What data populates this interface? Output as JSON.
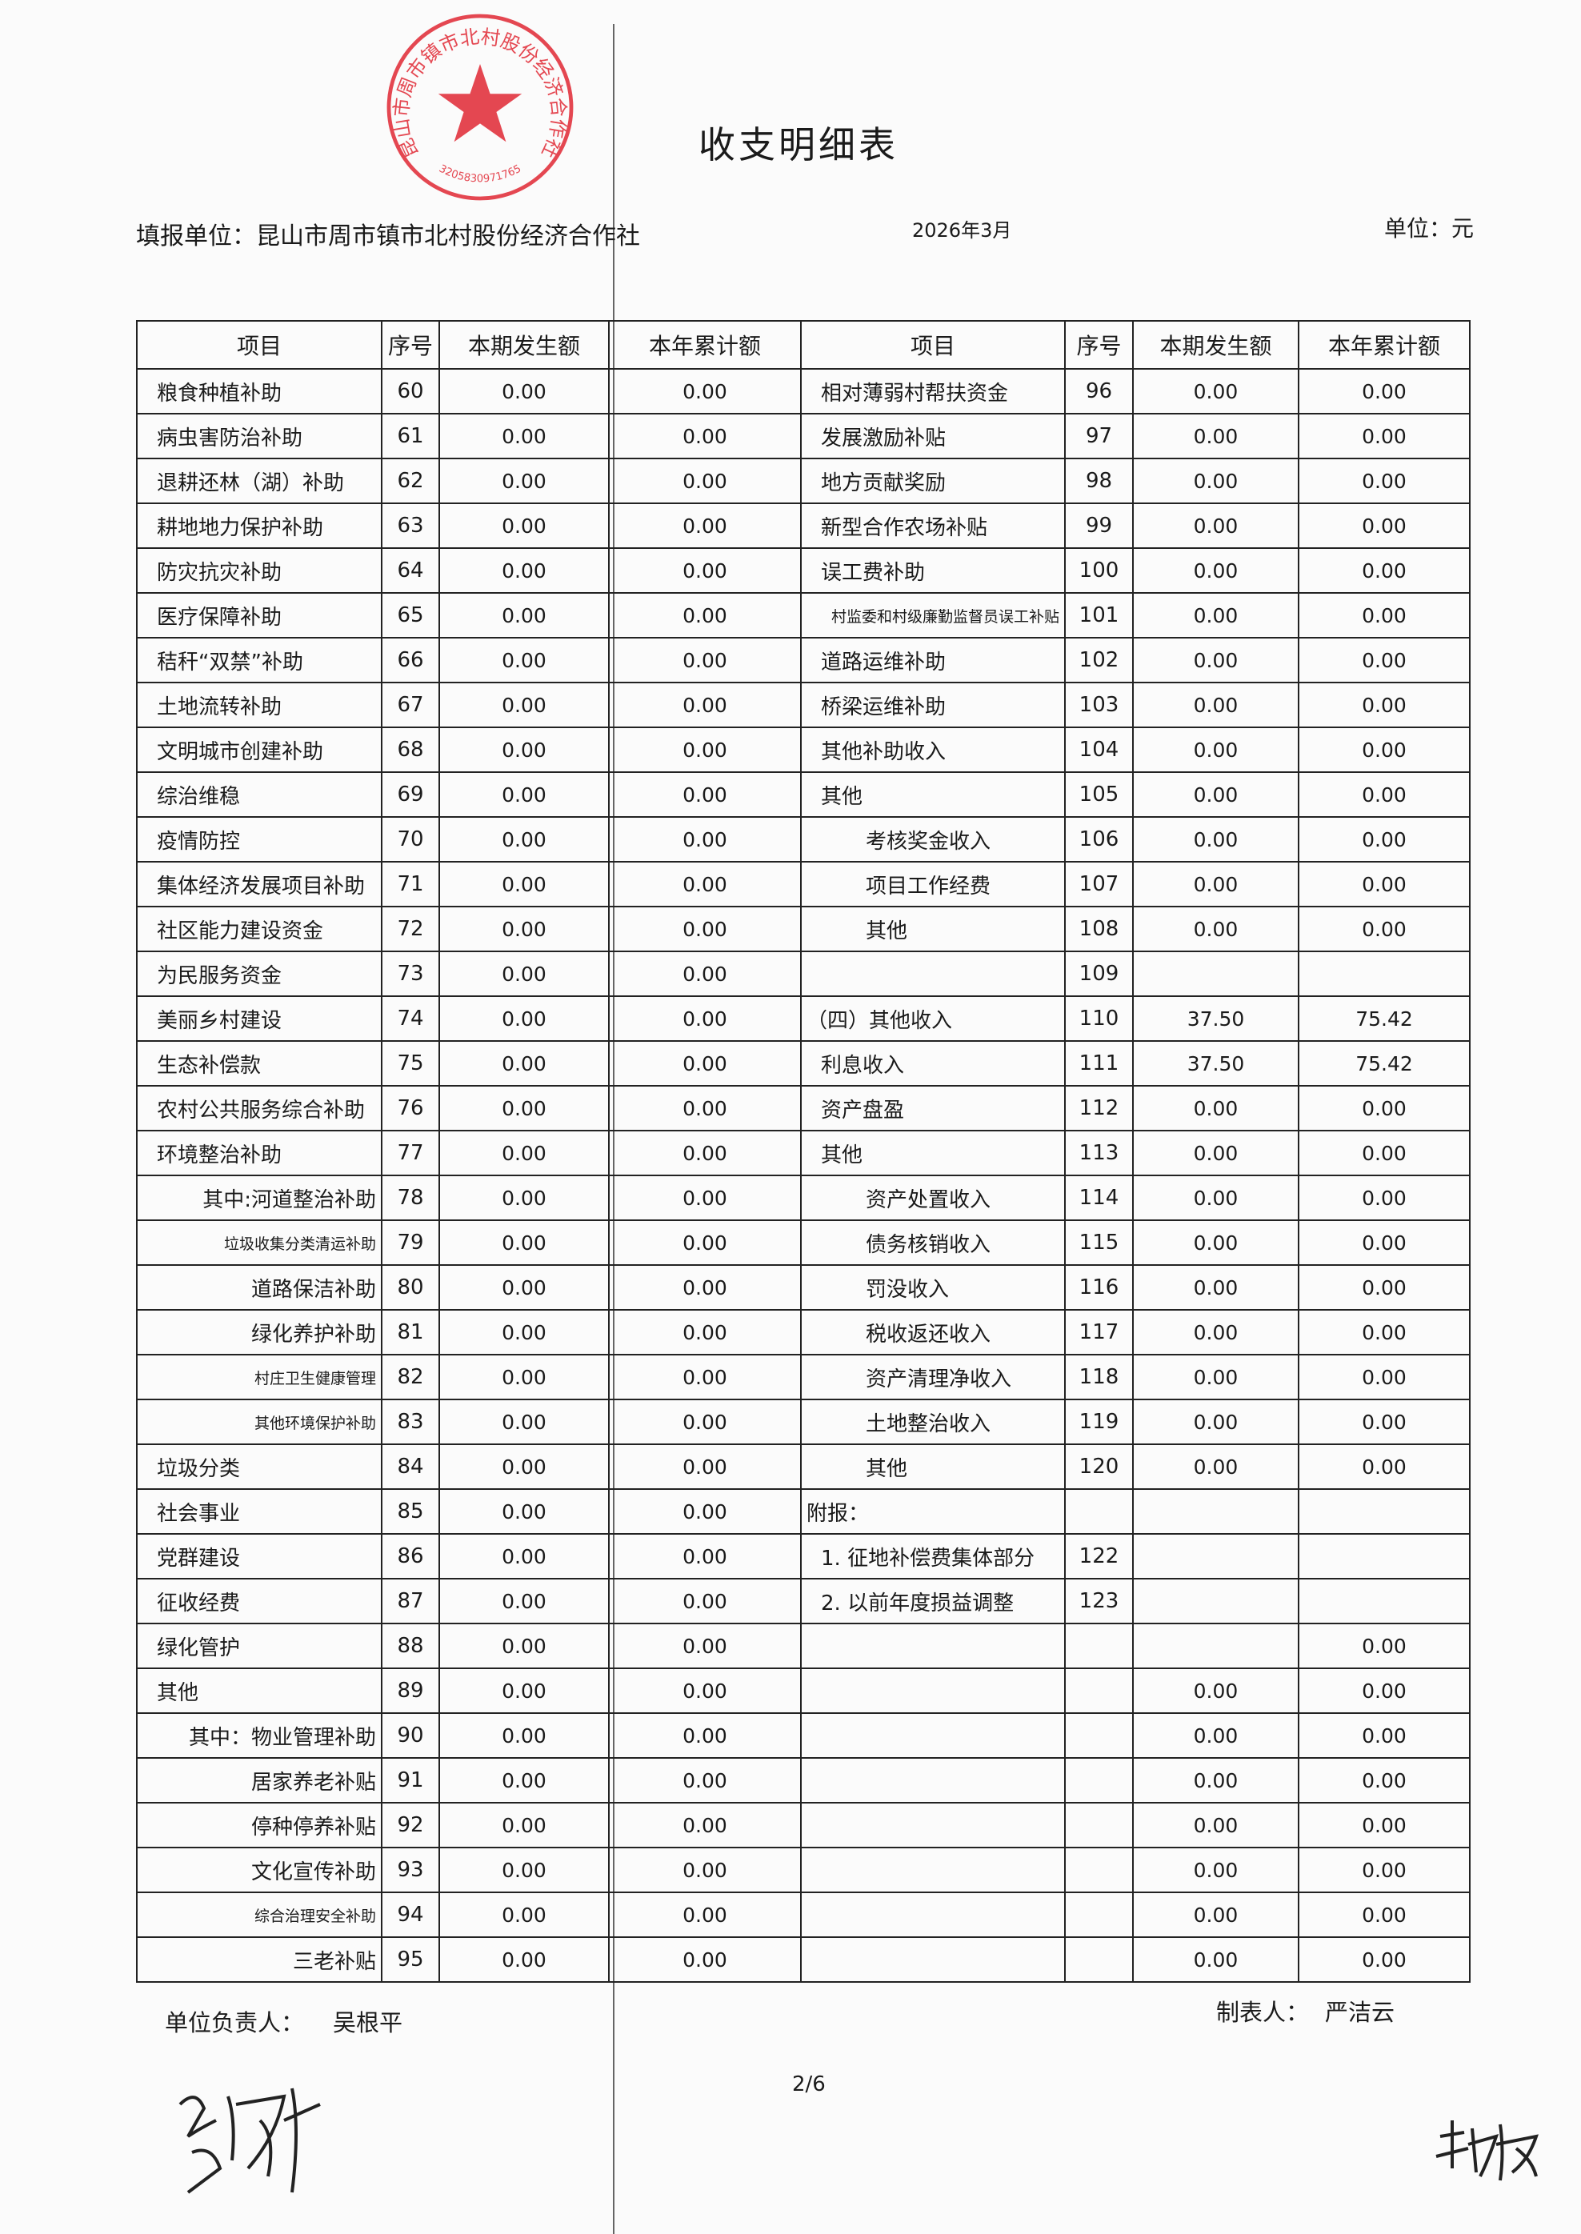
{
  "title": "收支明细表",
  "header": {
    "unit_label": "填报单位：",
    "unit_name": "昆山市周市镇市北村股份经济合作社",
    "period": "2026年3月",
    "currency": "单位：元"
  },
  "columns": [
    "项目",
    "序号",
    "本期发生额",
    "本年累计额",
    "项目",
    "序号",
    "本期发生额",
    "本年累计额"
  ],
  "left_rows": [
    [
      "粮食种植补助",
      "60",
      "0.00",
      "0.00"
    ],
    [
      "病虫害防治补助",
      "61",
      "0.00",
      "0.00"
    ],
    [
      "退耕还林（湖）补助",
      "62",
      "0.00",
      "0.00"
    ],
    [
      "耕地地力保护补助",
      "63",
      "0.00",
      "0.00"
    ],
    [
      "防灾抗灾补助",
      "64",
      "0.00",
      "0.00"
    ],
    [
      "医疗保障补助",
      "65",
      "0.00",
      "0.00"
    ],
    [
      "秸秆“双禁”补助",
      "66",
      "0.00",
      "0.00"
    ],
    [
      "土地流转补助",
      "67",
      "0.00",
      "0.00"
    ],
    [
      "文明城市创建补助",
      "68",
      "0.00",
      "0.00"
    ],
    [
      "综治维稳",
      "69",
      "0.00",
      "0.00"
    ],
    [
      "疫情防控",
      "70",
      "0.00",
      "0.00"
    ],
    [
      "集体经济发展项目补助",
      "71",
      "0.00",
      "0.00"
    ],
    [
      "社区能力建设资金",
      "72",
      "0.00",
      "0.00"
    ],
    [
      "为民服务资金",
      "73",
      "0.00",
      "0.00"
    ],
    [
      "美丽乡村建设",
      "74",
      "0.00",
      "0.00"
    ],
    [
      "生态补偿款",
      "75",
      "0.00",
      "0.00"
    ],
    [
      "农村公共服务综合补助",
      "76",
      "0.00",
      "0.00"
    ],
    [
      "环境整治补助",
      "77",
      "0.00",
      "0.00"
    ],
    [
      "其中:河道整治补助",
      "78",
      "0.00",
      "0.00"
    ],
    [
      "垃圾收集分类清运补助",
      "79",
      "0.00",
      "0.00"
    ],
    [
      "道路保洁补助",
      "80",
      "0.00",
      "0.00"
    ],
    [
      "绿化养护补助",
      "81",
      "0.00",
      "0.00"
    ],
    [
      "村庄卫生健康管理",
      "82",
      "0.00",
      "0.00"
    ],
    [
      "其他环境保护补助",
      "83",
      "0.00",
      "0.00"
    ],
    [
      "垃圾分类",
      "84",
      "0.00",
      "0.00"
    ],
    [
      "社会事业",
      "85",
      "0.00",
      "0.00"
    ],
    [
      "党群建设",
      "86",
      "0.00",
      "0.00"
    ],
    [
      "征收经费",
      "87",
      "0.00",
      "0.00"
    ],
    [
      "绿化管护",
      "88",
      "0.00",
      "0.00"
    ],
    [
      "其他",
      "89",
      "0.00",
      "0.00"
    ],
    [
      "其中：物业管理补助",
      "90",
      "0.00",
      "0.00"
    ],
    [
      "居家养老补贴",
      "91",
      "0.00",
      "0.00"
    ],
    [
      "停种停养补贴",
      "92",
      "0.00",
      "0.00"
    ],
    [
      "文化宣传补助",
      "93",
      "0.00",
      "0.00"
    ],
    [
      "综合治理安全补助",
      "94",
      "0.00",
      "0.00"
    ],
    [
      "三老补贴",
      "95",
      "0.00",
      "0.00"
    ]
  ],
  "right_rows": [
    [
      "相对薄弱村帮扶资金",
      "96",
      "0.00",
      "0.00"
    ],
    [
      "发展激励补贴",
      "97",
      "0.00",
      "0.00"
    ],
    [
      "地方贡献奖励",
      "98",
      "0.00",
      "0.00"
    ],
    [
      "新型合作农场补贴",
      "99",
      "0.00",
      "0.00"
    ],
    [
      "误工费补助",
      "100",
      "0.00",
      "0.00"
    ],
    [
      "村监委和村级廉勤监督员误工补贴",
      "101",
      "0.00",
      "0.00"
    ],
    [
      "道路运维补助",
      "102",
      "0.00",
      "0.00"
    ],
    [
      "桥梁运维补助",
      "103",
      "0.00",
      "0.00"
    ],
    [
      "其他补助收入",
      "104",
      "0.00",
      "0.00"
    ],
    [
      "其他",
      "105",
      "0.00",
      "0.00"
    ],
    [
      "考核奖金收入",
      "106",
      "0.00",
      "0.00"
    ],
    [
      "项目工作经费",
      "107",
      "0.00",
      "0.00"
    ],
    [
      "其他",
      "108",
      "0.00",
      "0.00"
    ],
    [
      "",
      "109",
      "",
      ""
    ],
    [
      "（四）其他收入",
      "110",
      "37.50",
      "75.42"
    ],
    [
      "利息收入",
      "111",
      "37.50",
      "75.42"
    ],
    [
      "资产盘盈",
      "112",
      "0.00",
      "0.00"
    ],
    [
      "其他",
      "113",
      "0.00",
      "0.00"
    ],
    [
      "资产处置收入",
      "114",
      "0.00",
      "0.00"
    ],
    [
      "债务核销收入",
      "115",
      "0.00",
      "0.00"
    ],
    [
      "罚没收入",
      "116",
      "0.00",
      "0.00"
    ],
    [
      "税收返还收入",
      "117",
      "0.00",
      "0.00"
    ],
    [
      "资产清理净收入",
      "118",
      "0.00",
      "0.00"
    ],
    [
      "土地整治收入",
      "119",
      "0.00",
      "0.00"
    ],
    [
      "其他",
      "120",
      "0.00",
      "0.00"
    ],
    [
      "附报：",
      "",
      "",
      ""
    ],
    [
      "1. 征地补偿费集体部分",
      "122",
      "",
      ""
    ],
    [
      "2. 以前年度损益调整",
      "123",
      "",
      ""
    ],
    [
      "",
      "",
      "",
      "0.00"
    ],
    [
      "",
      "",
      "0.00",
      "0.00"
    ],
    [
      "",
      "",
      "0.00",
      "0.00"
    ],
    [
      "",
      "",
      "0.00",
      "0.00"
    ],
    [
      "",
      "",
      "0.00",
      "0.00"
    ],
    [
      "",
      "",
      "0.00",
      "0.00"
    ],
    [
      "",
      "",
      "0.00",
      "0.00"
    ],
    [
      "",
      "",
      "0.00",
      "0.00"
    ]
  ],
  "footer": {
    "head_label": "单位负责人：",
    "head_name": "吴根平",
    "preparer_label": "制表人：",
    "preparer_name": "严洁云",
    "page": "2/6"
  },
  "stamp": {
    "text": "昆山市周市镇市北村股份经济合作社",
    "code": "3205830971765",
    "color": "#e0202c"
  }
}
